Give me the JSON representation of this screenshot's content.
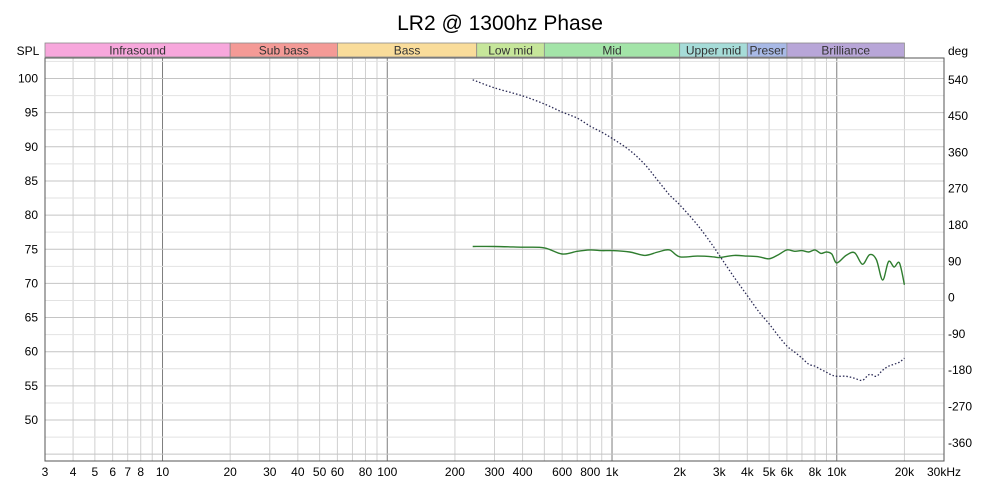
{
  "chart_data": {
    "type": "line",
    "title": "LR2 @ 1300hz Phase",
    "xscale": "log",
    "xlim": [
      3,
      30000
    ],
    "ylabel_left": "SPL",
    "ylabel_right": "deg",
    "ylim_left": [
      44,
      103
    ],
    "ylim_right": [
      -405,
      594
    ],
    "left_ticks": [
      100,
      95,
      90,
      85,
      80,
      75,
      70,
      65,
      60,
      55,
      50
    ],
    "right_ticks": [
      540,
      450,
      360,
      270,
      180,
      90,
      0,
      -90,
      -180,
      -270,
      -360
    ],
    "x_ticks": [
      {
        "value": 3,
        "label": "3"
      },
      {
        "value": 4,
        "label": "4"
      },
      {
        "value": 5,
        "label": "5"
      },
      {
        "value": 6,
        "label": "6"
      },
      {
        "value": 7,
        "label": "7"
      },
      {
        "value": 8,
        "label": "8"
      },
      {
        "value": 10,
        "label": "10"
      },
      {
        "value": 20,
        "label": "20"
      },
      {
        "value": 30,
        "label": "30"
      },
      {
        "value": 40,
        "label": "40"
      },
      {
        "value": 50,
        "label": "50"
      },
      {
        "value": 60,
        "label": "60"
      },
      {
        "value": 80,
        "label": "80"
      },
      {
        "value": 100,
        "label": "100"
      },
      {
        "value": 200,
        "label": "200"
      },
      {
        "value": 300,
        "label": "300"
      },
      {
        "value": 400,
        "label": "400"
      },
      {
        "value": 600,
        "label": "600"
      },
      {
        "value": 800,
        "label": "800"
      },
      {
        "value": 1000,
        "label": "1k"
      },
      {
        "value": 2000,
        "label": "2k"
      },
      {
        "value": 3000,
        "label": "3k"
      },
      {
        "value": 4000,
        "label": "4k"
      },
      {
        "value": 5000,
        "label": "5k"
      },
      {
        "value": 6000,
        "label": "6k"
      },
      {
        "value": 8000,
        "label": "8k"
      },
      {
        "value": 10000,
        "label": "10k"
      },
      {
        "value": 20000,
        "label": "20k"
      },
      {
        "value": 30000,
        "label": "30kHz"
      }
    ],
    "bands": [
      {
        "name": "Infrasound",
        "from": 3,
        "to": 20,
        "color": "#f7a7dc"
      },
      {
        "name": "Sub bass",
        "from": 20,
        "to": 60,
        "color": "#f49a96"
      },
      {
        "name": "Bass",
        "from": 60,
        "to": 250,
        "color": "#f9dc9a"
      },
      {
        "name": "Low mid",
        "from": 250,
        "to": 500,
        "color": "#c6e69a"
      },
      {
        "name": "Mid",
        "from": 500,
        "to": 2000,
        "color": "#a3e4a8"
      },
      {
        "name": "Upper mid",
        "from": 2000,
        "to": 4000,
        "color": "#a6dcd8"
      },
      {
        "name": "Preser",
        "from": 4000,
        "to": 6000,
        "color": "#a8b9e6"
      },
      {
        "name": "Brilliance",
        "from": 6000,
        "to": 20000,
        "color": "#b8a6d8"
      }
    ],
    "series": [
      {
        "name": "SPL",
        "axis": "left",
        "color": "#2f7d2f",
        "style": "solid",
        "x": [
          240,
          300,
          400,
          500,
          600,
          700,
          800,
          900,
          1000,
          1200,
          1400,
          1600,
          1800,
          2000,
          2400,
          2800,
          3000,
          3500,
          4000,
          4500,
          5000,
          5500,
          6000,
          6500,
          7000,
          7500,
          8000,
          8500,
          9000,
          9500,
          10000,
          11000,
          12000,
          13000,
          14000,
          15000,
          16000,
          17000,
          18000,
          19000,
          20000
        ],
        "y": [
          75.4,
          75.4,
          75.3,
          75.2,
          74.3,
          74.7,
          74.9,
          74.8,
          74.8,
          74.6,
          74.1,
          74.6,
          74.9,
          73.9,
          74.0,
          73.9,
          73.8,
          74.1,
          74.0,
          73.9,
          73.6,
          74.2,
          74.9,
          74.7,
          74.8,
          74.6,
          74.9,
          74.4,
          74.6,
          74.3,
          73.0,
          74.1,
          74.5,
          72.8,
          74.2,
          73.5,
          70.5,
          73.2,
          72.4,
          73.0,
          69.8
        ]
      },
      {
        "name": "Phase",
        "axis": "right",
        "color": "#2a2a55",
        "style": "dotted",
        "x": [
          240,
          300,
          400,
          500,
          600,
          700,
          800,
          900,
          1000,
          1200,
          1400,
          1600,
          1800,
          2000,
          2400,
          2800,
          3000,
          3500,
          4000,
          4500,
          5000,
          5500,
          6000,
          6500,
          7000,
          7500,
          8000,
          8500,
          9000,
          9500,
          10000,
          11000,
          12000,
          13000,
          14000,
          15000,
          16000,
          17000,
          18000,
          19000,
          20000
        ],
        "y": [
          540,
          520,
          500,
          480,
          460,
          445,
          425,
          410,
          395,
          365,
          330,
          290,
          255,
          230,
          180,
          130,
          105,
          50,
          5,
          -35,
          -65,
          -95,
          -120,
          -135,
          -150,
          -165,
          -170,
          -178,
          -185,
          -192,
          -195,
          -195,
          -200,
          -205,
          -190,
          -195,
          -180,
          -170,
          -165,
          -160,
          -150
        ]
      }
    ]
  }
}
